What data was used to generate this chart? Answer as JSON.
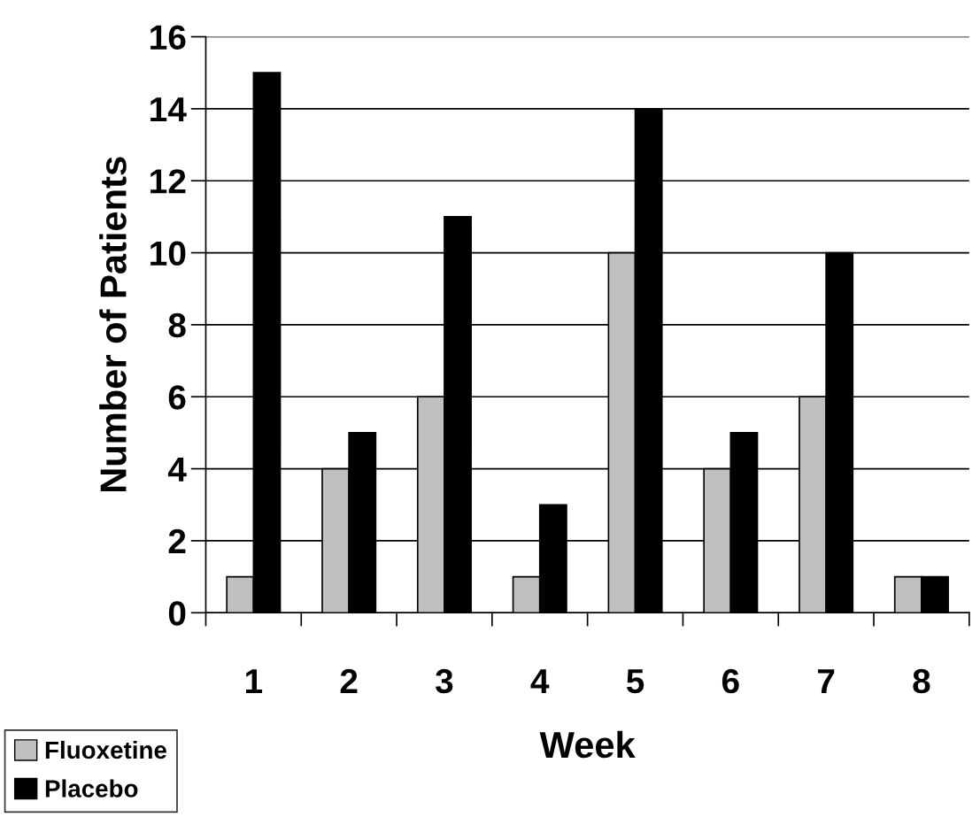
{
  "chart_data": {
    "type": "bar",
    "xlabel": "Week",
    "ylabel": "Number of Patients",
    "categories": [
      "1",
      "2",
      "3",
      "4",
      "5",
      "6",
      "7",
      "8"
    ],
    "series": [
      {
        "name": "Fluoxetine",
        "color": "#c0c0c0",
        "values": [
          1,
          4,
          6,
          1,
          10,
          4,
          6,
          1
        ]
      },
      {
        "name": "Placebo",
        "color": "#000000",
        "values": [
          15,
          5,
          11,
          3,
          14,
          5,
          10,
          1
        ]
      }
    ],
    "ylim": [
      0,
      16
    ],
    "yticks": [
      0,
      2,
      4,
      6,
      8,
      10,
      12,
      14,
      16
    ],
    "grid": "y",
    "legend": "bottom left"
  }
}
